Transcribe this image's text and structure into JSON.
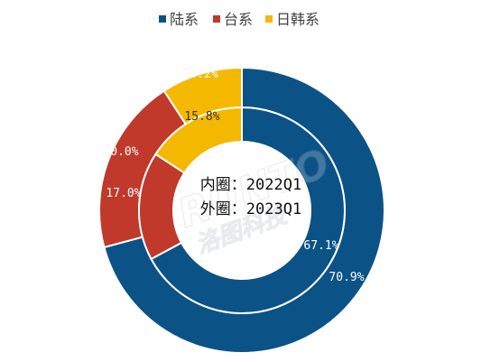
{
  "chart_data": {
    "type": "donut",
    "legend": [
      {
        "name": "陆系",
        "color": "#0b5287"
      },
      {
        "name": "台系",
        "color": "#c0392b"
      },
      {
        "name": "日韩系",
        "color": "#f5b800"
      }
    ],
    "rings": [
      {
        "ring": "inner",
        "name": "2022Q1",
        "values": [
          {
            "series": "陆系",
            "value": 67.1,
            "label": "67.1%"
          },
          {
            "series": "台系",
            "value": 17.0,
            "label": "17.0%"
          },
          {
            "series": "日韩系",
            "value": 15.8,
            "label": "15.8%"
          }
        ]
      },
      {
        "ring": "outer",
        "name": "2023Q1",
        "values": [
          {
            "series": "陆系",
            "value": 70.9,
            "label": "70.9%"
          },
          {
            "series": "台系",
            "value": 20.0,
            "label": "20.0%"
          },
          {
            "series": "日韩系",
            "value": 9.2,
            "label": "9.2%"
          }
        ]
      }
    ],
    "center_text": {
      "line1": "内圈：2022Q1",
      "line2": "外圈：2023Q1"
    },
    "legend_position": "top-center"
  },
  "watermark": {
    "text_latin": "RUNTO",
    "text_cn": "洛图科技"
  }
}
